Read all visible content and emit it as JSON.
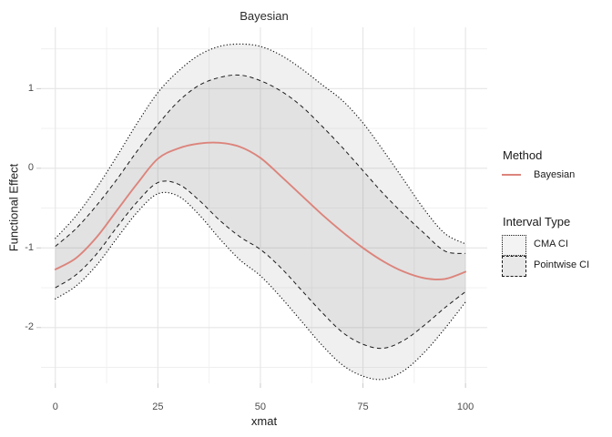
{
  "chart_data": {
    "type": "line",
    "title": "Bayesian",
    "xlabel": "xmat",
    "ylabel": "Functional Effect",
    "grid": true,
    "legend_position": "right",
    "xlim": [
      -3.5,
      105.3
    ],
    "ylim": [
      -2.7,
      1.77
    ],
    "x_ticks": [
      0,
      25,
      50,
      75,
      100
    ],
    "y_ticks": [
      -2,
      -1,
      0,
      1
    ],
    "x_minor": [
      12.5,
      37.5,
      62.5,
      87.5
    ],
    "y_minor": [
      -2.5,
      -1.5,
      -0.5,
      0.5,
      1.5
    ],
    "x": [
      0,
      5,
      10,
      15,
      20,
      25,
      30,
      35,
      40,
      45,
      50,
      55,
      60,
      65,
      70,
      75,
      80,
      85,
      90,
      95,
      100
    ],
    "series": [
      {
        "name": "Bayesian",
        "kind": "line",
        "color": "#dc847c",
        "values": [
          -1.27,
          -1.13,
          -0.87,
          -0.53,
          -0.19,
          0.12,
          0.25,
          0.31,
          0.32,
          0.27,
          0.13,
          -0.1,
          -0.34,
          -0.58,
          -0.8,
          -1.0,
          -1.17,
          -1.3,
          -1.38,
          -1.39,
          -1.3
        ]
      },
      {
        "name": "CMA CI",
        "kind": "ribbon",
        "linestyle": "dotted",
        "line_color": "#1a1a1a",
        "upper": [
          -0.88,
          -0.6,
          -0.25,
          0.15,
          0.57,
          0.95,
          1.22,
          1.42,
          1.53,
          1.56,
          1.53,
          1.42,
          1.25,
          1.05,
          0.85,
          0.57,
          0.22,
          -0.15,
          -0.52,
          -0.82,
          -0.95
        ],
        "lower": [
          -1.64,
          -1.48,
          -1.22,
          -0.88,
          -0.55,
          -0.32,
          -0.35,
          -0.58,
          -0.88,
          -1.15,
          -1.35,
          -1.62,
          -1.92,
          -2.22,
          -2.47,
          -2.61,
          -2.65,
          -2.54,
          -2.31,
          -2.01,
          -1.68
        ]
      },
      {
        "name": "Pointwise CI",
        "kind": "ribbon",
        "linestyle": "dashed",
        "line_color": "#1a1a1a",
        "upper": [
          -0.98,
          -0.76,
          -0.47,
          -0.14,
          0.22,
          0.55,
          0.84,
          1.04,
          1.14,
          1.17,
          1.1,
          0.97,
          0.78,
          0.53,
          0.26,
          -0.03,
          -0.32,
          -0.58,
          -0.82,
          -1.04,
          -1.07
        ],
        "lower": [
          -1.5,
          -1.34,
          -1.08,
          -0.74,
          -0.42,
          -0.18,
          -0.2,
          -0.4,
          -0.65,
          -0.86,
          -1.02,
          -1.25,
          -1.53,
          -1.81,
          -2.06,
          -2.21,
          -2.26,
          -2.16,
          -1.97,
          -1.75,
          -1.55
        ]
      }
    ],
    "legend": {
      "groups": [
        {
          "title": "Method",
          "items": [
            {
              "label": "Bayesian",
              "swatch": "line",
              "color": "#dc847c"
            }
          ]
        },
        {
          "title": "Interval Type",
          "items": [
            {
              "label": "CMA CI",
              "swatch": "box",
              "linestyle": "dotted",
              "fill": "#f3f3f3"
            },
            {
              "label": "Pointwise CI",
              "swatch": "box",
              "linestyle": "dashed",
              "fill": "#e8e8e8"
            }
          ]
        }
      ]
    },
    "colors": {
      "band_fill": "rgba(128,128,128,0.12)",
      "grid_major": "#e5e5e5",
      "grid_minor": "#efefef",
      "tick_mark": "#c9c9c9",
      "tick_text": "#4d4d4d"
    }
  }
}
